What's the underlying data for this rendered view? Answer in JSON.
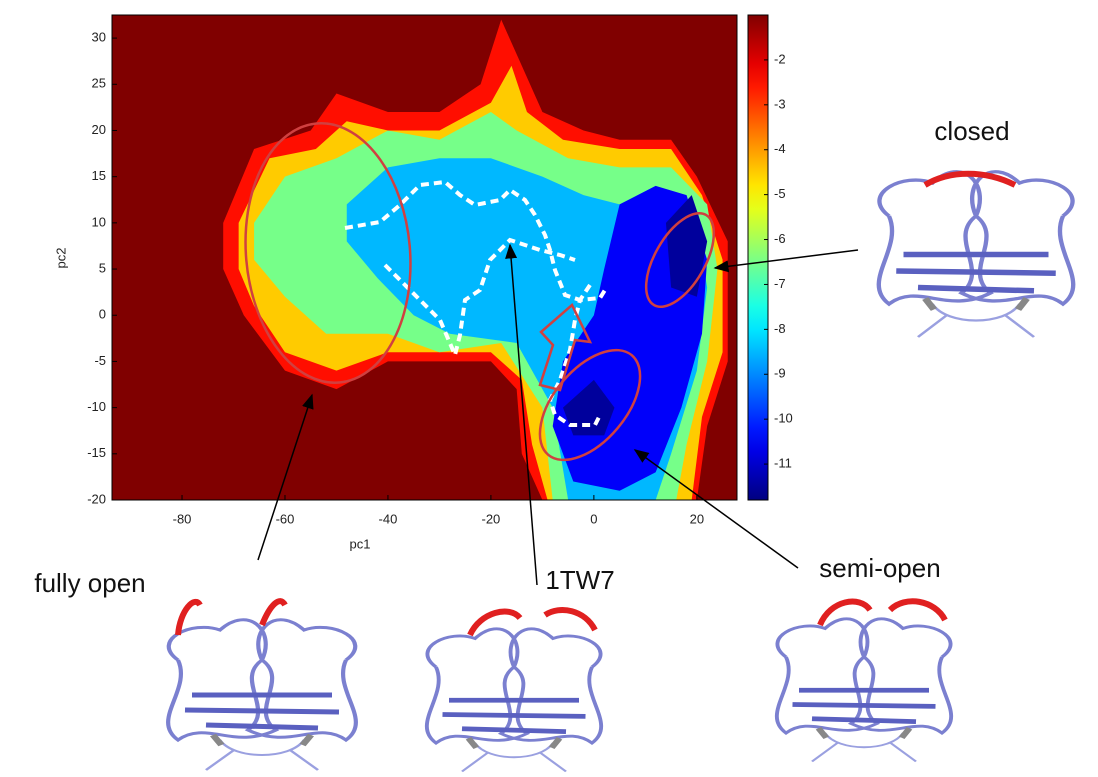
{
  "chart_data": {
    "type": "contour",
    "xlabel": "pc1",
    "ylabel": "pc2",
    "xlim": [
      -93.6,
      27.8
    ],
    "ylim": [
      -20,
      32.5
    ],
    "xticks": [
      -80,
      -60,
      -40,
      -20,
      0,
      20
    ],
    "yticks": [
      -20,
      -15,
      -10,
      -5,
      0,
      5,
      10,
      15,
      20,
      25,
      30
    ],
    "colormap": "jet",
    "clim": [
      -11.8,
      -1
    ],
    "cticks": [
      -2,
      -3,
      -4,
      -5,
      -6,
      -7,
      -8,
      -9,
      -10,
      -11
    ],
    "contours": [
      {
        "level": -2,
        "points": [
          [
            -72,
            10
          ],
          [
            -66,
            18
          ],
          [
            -55,
            20
          ],
          [
            -50,
            24
          ],
          [
            -40,
            22
          ],
          [
            -30,
            22
          ],
          [
            -22,
            25
          ],
          [
            -18,
            32
          ],
          [
            -14,
            27
          ],
          [
            -10,
            22
          ],
          [
            -2,
            20
          ],
          [
            5,
            19
          ],
          [
            15,
            19
          ],
          [
            20,
            15
          ],
          [
            26,
            8
          ],
          [
            26,
            -5
          ],
          [
            22,
            -12
          ],
          [
            20,
            -20
          ],
          [
            -10,
            -20
          ],
          [
            -14,
            -15
          ],
          [
            -15,
            -8
          ],
          [
            -20,
            -5
          ],
          [
            -30,
            -5
          ],
          [
            -40,
            -5
          ],
          [
            -50,
            -8
          ],
          [
            -60,
            -6
          ],
          [
            -68,
            0
          ],
          [
            -72,
            5
          ]
        ]
      },
      {
        "level": -4,
        "points": [
          [
            -69,
            10
          ],
          [
            -63,
            17
          ],
          [
            -54,
            18
          ],
          [
            -48,
            21
          ],
          [
            -40,
            20
          ],
          [
            -30,
            20
          ],
          [
            -20,
            23
          ],
          [
            -16,
            27
          ],
          [
            -13,
            22
          ],
          [
            -6,
            19
          ],
          [
            5,
            18
          ],
          [
            15,
            18
          ],
          [
            21,
            13
          ],
          [
            25,
            6
          ],
          [
            25,
            -4
          ],
          [
            21,
            -11
          ],
          [
            19,
            -20
          ],
          [
            -9,
            -20
          ],
          [
            -12,
            -14
          ],
          [
            -14,
            -7
          ],
          [
            -20,
            -4
          ],
          [
            -30,
            -4
          ],
          [
            -40,
            -4
          ],
          [
            -50,
            -6
          ],
          [
            -60,
            -4
          ],
          [
            -66,
            1
          ],
          [
            -69,
            5
          ]
        ]
      },
      {
        "level": -6,
        "points": [
          [
            -66,
            10
          ],
          [
            -60,
            15
          ],
          [
            -50,
            17
          ],
          [
            -40,
            20
          ],
          [
            -30,
            19
          ],
          [
            -20,
            22
          ],
          [
            -15,
            20
          ],
          [
            -5,
            17
          ],
          [
            5,
            16
          ],
          [
            15,
            16
          ],
          [
            22,
            12
          ],
          [
            24,
            5
          ],
          [
            22,
            -5
          ],
          [
            18,
            -14
          ],
          [
            16,
            -20
          ],
          [
            -8,
            -20
          ],
          [
            -10,
            -10
          ],
          [
            -18,
            -3
          ],
          [
            -30,
            -4
          ],
          [
            -40,
            -2
          ],
          [
            -52,
            -2
          ],
          [
            -60,
            2
          ],
          [
            -66,
            6
          ]
        ]
      },
      {
        "level": -8,
        "points": [
          [
            -48,
            12
          ],
          [
            -40,
            16
          ],
          [
            -30,
            17
          ],
          [
            -20,
            17
          ],
          [
            -10,
            15
          ],
          [
            -2,
            13
          ],
          [
            5,
            12
          ],
          [
            12,
            14
          ],
          [
            20,
            10
          ],
          [
            22,
            3
          ],
          [
            20,
            -6
          ],
          [
            15,
            -15
          ],
          [
            12,
            -20
          ],
          [
            -5,
            -20
          ],
          [
            -8,
            -10
          ],
          [
            -15,
            -3
          ],
          [
            -28,
            -2
          ],
          [
            -35,
            0
          ],
          [
            -42,
            4
          ],
          [
            -48,
            8
          ]
        ]
      },
      {
        "level": -10,
        "points": [
          [
            5,
            12
          ],
          [
            12,
            14
          ],
          [
            18,
            13
          ],
          [
            22,
            6
          ],
          [
            21,
            -2
          ],
          [
            17,
            -10
          ],
          [
            12,
            -17
          ],
          [
            5,
            -19
          ],
          [
            -4,
            -18
          ],
          [
            -8,
            -12
          ],
          [
            -6,
            -5
          ],
          [
            0,
            0
          ],
          [
            2,
            5
          ]
        ]
      },
      {
        "level": -11,
        "points": [
          [
            14,
            10
          ],
          [
            19,
            13
          ],
          [
            22,
            8
          ],
          [
            20,
            2
          ],
          [
            15,
            3
          ]
        ]
      },
      {
        "level": -11,
        "points": [
          [
            -6,
            -10
          ],
          [
            0,
            -7
          ],
          [
            4,
            -10
          ],
          [
            2,
            -13
          ],
          [
            -4,
            -13
          ]
        ]
      }
    ],
    "annotations": [
      "closed",
      "fully open",
      "1TW7",
      "semi-open"
    ]
  }
}
